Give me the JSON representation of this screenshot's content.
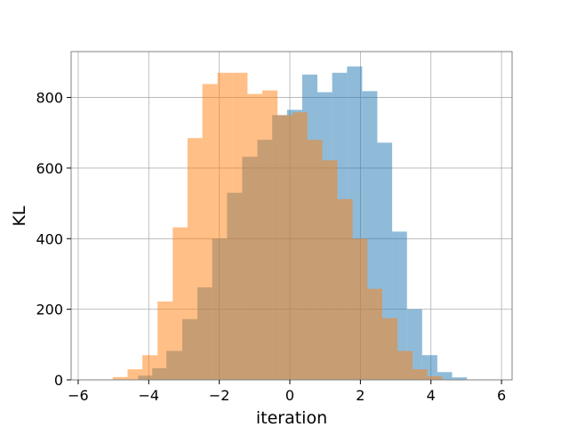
{
  "chart_data": {
    "type": "bar",
    "subtype": "histogram",
    "title": "",
    "xlabel": "iteration",
    "ylabel": "KL",
    "xlim": [
      -6.2,
      6.3
    ],
    "ylim": [
      0,
      930
    ],
    "xticks": [
      -6,
      -4,
      -2,
      0,
      2,
      4,
      6
    ],
    "xtick_labels": [
      "−6",
      "−4",
      "−2",
      "0",
      "2",
      "4",
      "6"
    ],
    "yticks": [
      0,
      200,
      400,
      600,
      800
    ],
    "ytick_labels": [
      "0",
      "200",
      "400",
      "600",
      "800"
    ],
    "grid": true,
    "legend": "none",
    "series": [
      {
        "color": "#1f77b4",
        "alpha": 0.5,
        "bins": [
          [
            -4.3,
            -3.9,
            12
          ],
          [
            -3.9,
            -3.5,
            33
          ],
          [
            -3.5,
            -3.05,
            82
          ],
          [
            -3.05,
            -2.62,
            172
          ],
          [
            -2.62,
            -2.2,
            262
          ],
          [
            -2.2,
            -1.78,
            400
          ],
          [
            -1.78,
            -1.35,
            530
          ],
          [
            -1.35,
            -0.92,
            632
          ],
          [
            -0.92,
            -0.5,
            680
          ],
          [
            -0.5,
            -0.08,
            750
          ],
          [
            -0.08,
            0.35,
            765
          ],
          [
            0.35,
            0.78,
            865
          ],
          [
            0.78,
            1.2,
            815
          ],
          [
            1.2,
            1.62,
            870
          ],
          [
            1.62,
            2.05,
            888
          ],
          [
            2.05,
            2.48,
            818
          ],
          [
            2.48,
            2.9,
            672
          ],
          [
            2.9,
            3.32,
            420
          ],
          [
            3.32,
            3.75,
            200
          ],
          [
            3.75,
            4.18,
            70
          ],
          [
            4.18,
            4.6,
            22
          ],
          [
            4.6,
            5.02,
            7
          ]
        ]
      },
      {
        "color": "#ff7f0e",
        "alpha": 0.5,
        "bins": [
          [
            -5.02,
            -4.6,
            8
          ],
          [
            -4.6,
            -4.18,
            30
          ],
          [
            -4.18,
            -3.75,
            70
          ],
          [
            -3.75,
            -3.32,
            222
          ],
          [
            -3.32,
            -2.9,
            432
          ],
          [
            -2.9,
            -2.48,
            685
          ],
          [
            -2.48,
            -2.05,
            838
          ],
          [
            -2.05,
            -1.62,
            870
          ],
          [
            -1.62,
            -1.2,
            870
          ],
          [
            -1.2,
            -0.78,
            810
          ],
          [
            -0.78,
            -0.35,
            820
          ],
          [
            -0.35,
            0.08,
            750
          ],
          [
            0.08,
            0.5,
            758
          ],
          [
            0.5,
            0.92,
            680
          ],
          [
            0.92,
            1.35,
            622
          ],
          [
            1.35,
            1.78,
            512
          ],
          [
            1.78,
            2.2,
            400
          ],
          [
            2.2,
            2.62,
            258
          ],
          [
            2.62,
            3.05,
            175
          ],
          [
            3.05,
            3.48,
            82
          ],
          [
            3.48,
            3.9,
            30
          ],
          [
            3.9,
            4.32,
            10
          ]
        ]
      }
    ]
  }
}
